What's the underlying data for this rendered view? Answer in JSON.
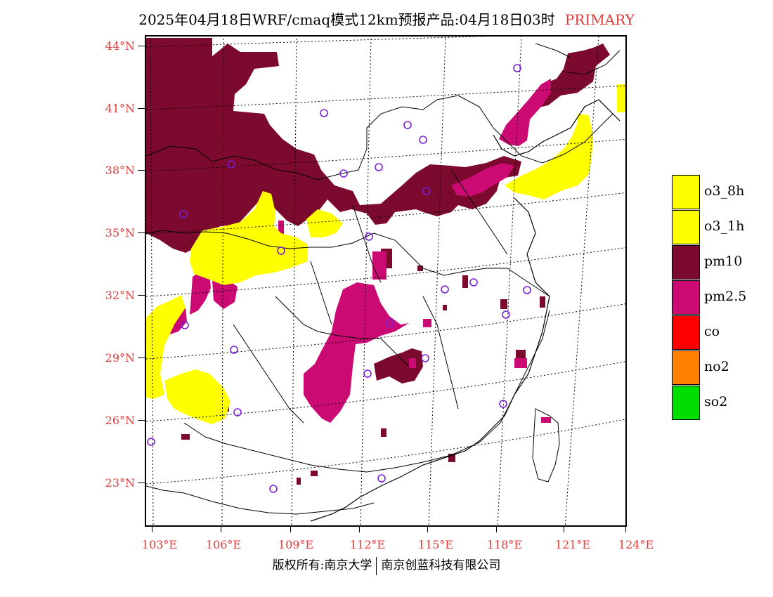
{
  "title": {
    "main": "2025年04月18日WRF/cmaq模式12km预报产品:04月18日03时",
    "highlight": "PRIMARY"
  },
  "axes": {
    "lat_labels": [
      "44°N",
      "41°N",
      "38°N",
      "35°N",
      "32°N",
      "29°N",
      "26°N",
      "23°N"
    ],
    "lon_labels": [
      "103°E",
      "106°E",
      "109°E",
      "112°E",
      "115°E",
      "118°E",
      "121°E",
      "124°E"
    ]
  },
  "legend": [
    {
      "label": "o3_8h",
      "color": "#ffff00"
    },
    {
      "label": "o3_1h",
      "color": "#ffff00"
    },
    {
      "label": "pm10",
      "color": "#7b0a2e"
    },
    {
      "label": "pm2.5",
      "color": "#cc0a73"
    },
    {
      "label": "co",
      "color": "#ff0000"
    },
    {
      "label": "no2",
      "color": "#ff7f00"
    },
    {
      "label": "so2",
      "color": "#00dd00"
    }
  ],
  "footer": {
    "left": "版权所有:南京大学",
    "right": "南京创蓝科技有限公司"
  }
}
